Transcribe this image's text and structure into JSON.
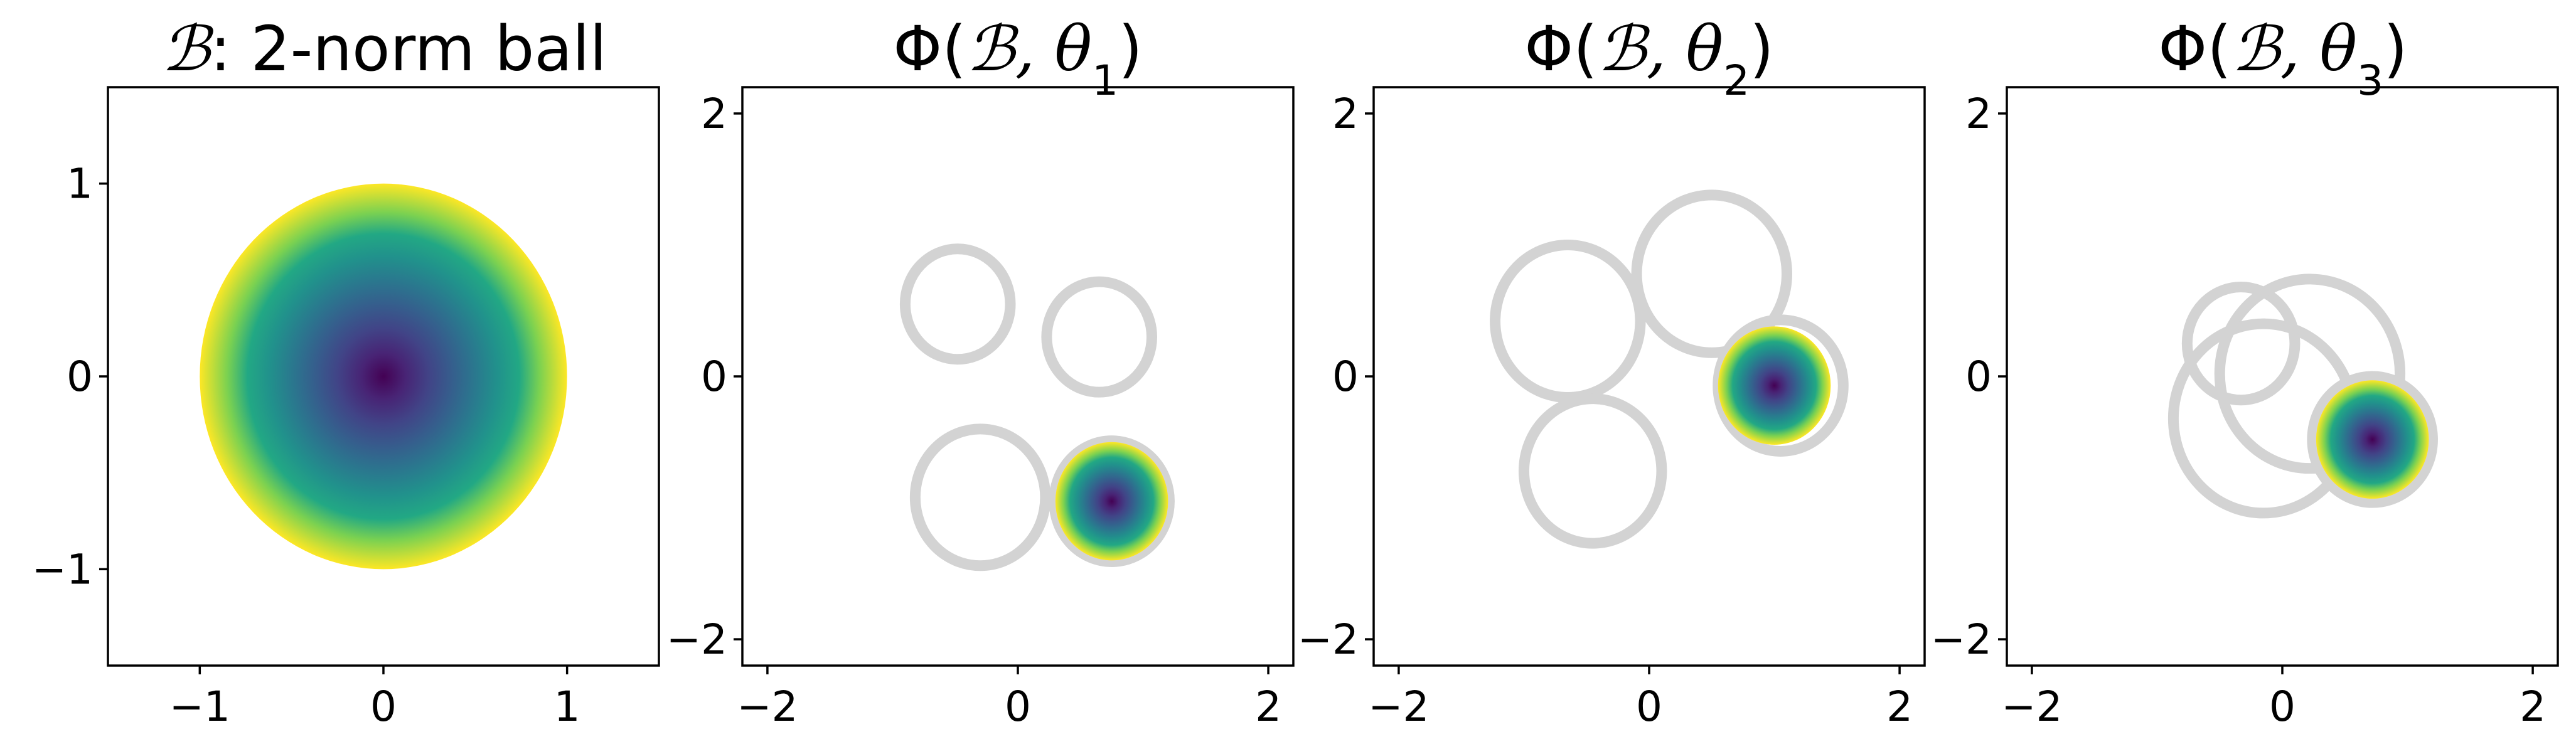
{
  "colors": {
    "background": "#ffffff",
    "axes": "#000000",
    "ring": "#d3d3d3",
    "colormap": "viridis"
  },
  "chart_data": [
    {
      "type": "scatter",
      "title": {
        "prefix": "",
        "script": "ℬ",
        "suffix": ": 2-norm ball",
        "subscript": ""
      },
      "xlim": [
        -1.5,
        1.5
      ],
      "ylim": [
        -1.5,
        1.5
      ],
      "xticks": [
        -1,
        0,
        1
      ],
      "yticks": [
        -1,
        0,
        1
      ],
      "xtick_labels": [
        "−1",
        "0",
        "1"
      ],
      "ytick_labels": [
        "−1",
        "0",
        "1"
      ],
      "grid": false,
      "rings": [],
      "filled_ball": {
        "center": [
          0,
          0
        ],
        "radius": 1.0,
        "colormap": "viridis"
      }
    },
    {
      "type": "scatter",
      "title": {
        "prefix": "Φ(",
        "script": "ℬ",
        "suffix": ", θ",
        "subscript": "1",
        "close": ")"
      },
      "xlim": [
        -2.2,
        2.2
      ],
      "ylim": [
        -2.2,
        2.2
      ],
      "xticks": [
        -2,
        0,
        2
      ],
      "yticks": [
        -2,
        0,
        2
      ],
      "xtick_labels": [
        "−2",
        "0",
        "2"
      ],
      "ytick_labels": [
        "−2",
        "0",
        "2"
      ],
      "grid": false,
      "rings": [
        {
          "center": [
            -0.48,
            0.55
          ],
          "radius": 0.42
        },
        {
          "center": [
            0.65,
            0.3
          ],
          "radius": 0.42
        },
        {
          "center": [
            -0.3,
            -0.92
          ],
          "radius": 0.52
        },
        {
          "center": [
            0.75,
            -0.95
          ],
          "radius": 0.46
        }
      ],
      "filled_ball": {
        "center": [
          0.75,
          -0.95
        ],
        "radius": 0.45,
        "colormap": "viridis"
      }
    },
    {
      "type": "scatter",
      "title": {
        "prefix": "Φ(",
        "script": "ℬ",
        "suffix": ", θ",
        "subscript": "2",
        "close": ")"
      },
      "xlim": [
        -2.2,
        2.2
      ],
      "ylim": [
        -2.2,
        2.2
      ],
      "xticks": [
        -2,
        0,
        2
      ],
      "yticks": [
        -2,
        0,
        2
      ],
      "xtick_labels": [
        "−2",
        "0",
        "2"
      ],
      "ytick_labels": [
        "−2",
        "0",
        "2"
      ],
      "grid": false,
      "rings": [
        {
          "center": [
            -0.65,
            0.42
          ],
          "radius": 0.58
        },
        {
          "center": [
            0.5,
            0.78
          ],
          "radius": 0.6
        },
        {
          "center": [
            -0.45,
            -0.72
          ],
          "radius": 0.55
        },
        {
          "center": [
            1.05,
            -0.07
          ],
          "radius": 0.5
        }
      ],
      "filled_ball": {
        "center": [
          1.0,
          -0.07
        ],
        "radius": 0.45,
        "colormap": "viridis"
      }
    },
    {
      "type": "scatter",
      "title": {
        "prefix": "Φ(",
        "script": "ℬ",
        "suffix": ", θ",
        "subscript": "3",
        "close": ")"
      },
      "xlim": [
        -2.2,
        2.2
      ],
      "ylim": [
        -2.2,
        2.2
      ],
      "xticks": [
        -2,
        0,
        2
      ],
      "yticks": [
        -2,
        0,
        2
      ],
      "xtick_labels": [
        "−2",
        "0",
        "2"
      ],
      "ytick_labels": [
        "−2",
        "0",
        "2"
      ],
      "grid": false,
      "rings": [
        {
          "center": [
            -0.33,
            0.25
          ],
          "radius": 0.43
        },
        {
          "center": [
            0.22,
            0.02
          ],
          "radius": 0.72
        },
        {
          "center": [
            -0.15,
            -0.32
          ],
          "radius": 0.72
        },
        {
          "center": [
            0.72,
            -0.48
          ],
          "radius": 0.48
        }
      ],
      "filled_ball": {
        "center": [
          0.72,
          -0.48
        ],
        "radius": 0.45,
        "colormap": "viridis"
      }
    }
  ]
}
